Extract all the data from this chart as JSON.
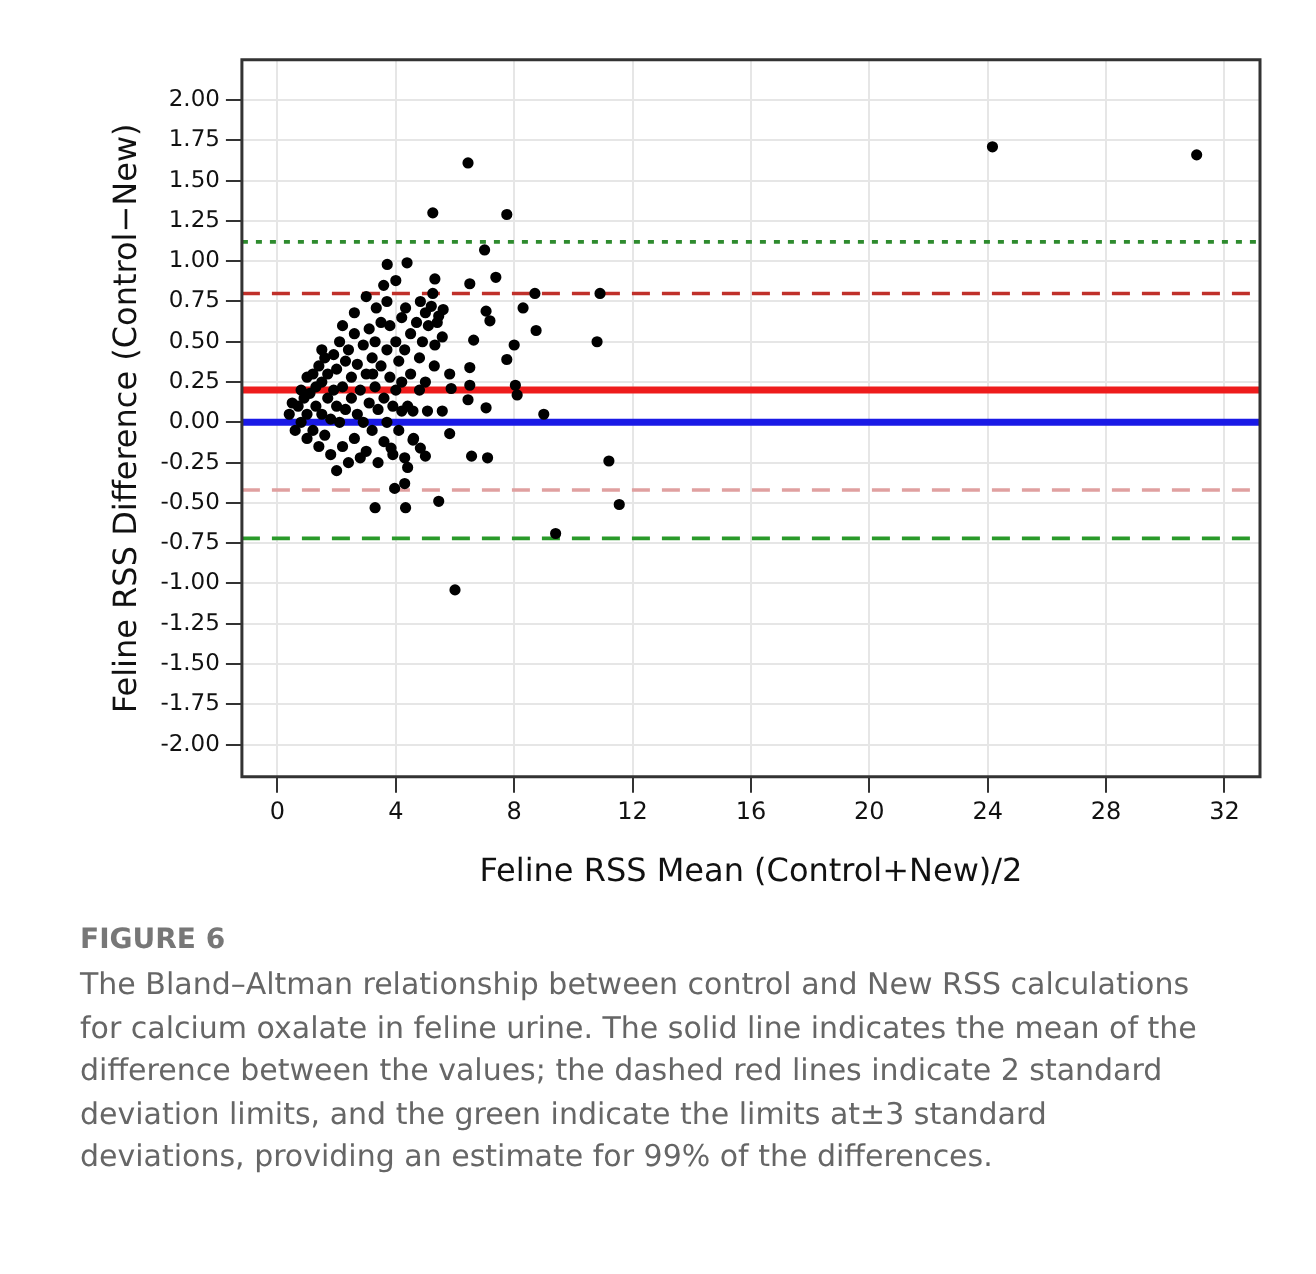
{
  "chart_data": {
    "type": "scatter",
    "xlabel": "Feline RSS Mean (Control+New)/2",
    "ylabel": "Feline RSS Difference (Control−New)",
    "annotations": [
      "FIGURE 6",
      "The Bland–Altman relationship between control and New RSS calculations for calcium oxalate in feline urine. The solid line indicates the mean of the difference between the values; the dashed red lines indicate 2 standard deviation limits, and the green indicate the limits at±3 standard deviations, providing an estimate for 99% of the differences."
    ],
    "xlim": [
      -1.2,
      33.2
    ],
    "xticks": [
      0,
      4,
      8,
      12,
      16,
      20,
      24,
      28,
      32
    ],
    "ylim": [
      -2.2,
      2.25
    ],
    "yticks": [
      {
        "value": 2,
        "label": "2.00"
      },
      {
        "value": 1.75,
        "label": "1.75"
      },
      {
        "value": 1.5,
        "label": "1.50"
      },
      {
        "value": 1.25,
        "label": "1.25"
      },
      {
        "value": 1,
        "label": "1.00"
      },
      {
        "value": 0.75,
        "label": "0.75"
      },
      {
        "value": 0.5,
        "label": "0.50"
      },
      {
        "value": 0.25,
        "label": "0.25"
      },
      {
        "value": 0,
        "label": "0.00"
      },
      {
        "value": -0.25,
        "label": "-0.25"
      },
      {
        "value": -0.5,
        "label": "-0.50"
      },
      {
        "value": -0.75,
        "label": "-0.75"
      },
      {
        "value": -1,
        "label": "-1.00"
      },
      {
        "value": -1.25,
        "label": "-1.25"
      },
      {
        "value": -1.5,
        "label": "-1.50"
      },
      {
        "value": -1.75,
        "label": "-1.75"
      },
      {
        "value": -2,
        "label": "-2.00"
      }
    ],
    "grid": true,
    "legend": false,
    "marker": "circle",
    "ref_lines": [
      {
        "axis": "y",
        "value": 1.12,
        "color": "#2e8b2e",
        "line_style": "dotted"
      },
      {
        "axis": "y",
        "value": 0.8,
        "color": "#c0302a",
        "line_style": "dashed"
      },
      {
        "axis": "y",
        "value": 0.2,
        "color": "#ee1c1c",
        "line_style": "solid"
      },
      {
        "axis": "y",
        "value": 0,
        "color": "#1a1ae6",
        "line_style": "solid"
      },
      {
        "axis": "y",
        "value": -0.42,
        "color": "#e0a0a0",
        "line_style": "dashed"
      },
      {
        "axis": "y",
        "value": -0.72,
        "color": "#2a9a2a",
        "line_style": "dashed"
      }
    ],
    "series": [
      {
        "color": "#000000",
        "x": [
          6.44,
          5.25,
          7.75,
          7.0,
          3.71,
          4.38,
          6.5,
          7.38,
          8.3,
          8.7,
          10.9,
          10.8,
          8.74,
          7.75,
          8.0,
          7.18,
          7.05,
          6.63,
          6.5,
          8.04,
          8.1,
          7.05,
          9.0,
          6.5,
          5.87,
          5.82,
          6.56,
          7.1,
          11.2,
          11.55,
          9.4,
          5.45,
          3.3,
          4.33,
          3.96,
          4.3,
          6.0,
          5.0,
          4.83,
          5.07,
          5.57,
          6.44,
          5.82,
          5.32,
          5.57,
          5.45,
          5.25,
          5.32,
          4.83,
          4.33,
          3.59,
          3.34,
          3.22,
          4.2,
          3.84,
          4.58,
          4.58,
          24.16,
          31.06,
          0.4,
          0.5,
          0.6,
          0.7,
          0.8,
          0.8,
          0.9,
          1.0,
          1.0,
          1.0,
          1.1,
          1.2,
          1.2,
          1.3,
          1.3,
          1.4,
          1.4,
          1.5,
          1.5,
          1.6,
          1.6,
          1.7,
          1.7,
          1.8,
          1.8,
          1.9,
          1.9,
          2.0,
          2.0,
          2.0,
          2.1,
          2.1,
          2.2,
          2.2,
          2.3,
          2.3,
          2.4,
          2.4,
          2.5,
          2.5,
          2.6,
          2.6,
          2.7,
          2.7,
          2.8,
          2.8,
          2.9,
          2.9,
          3.0,
          3.0,
          3.1,
          3.1,
          3.2,
          3.2,
          3.3,
          3.3,
          3.4,
          3.4,
          3.5,
          3.5,
          3.6,
          3.6,
          3.7,
          3.7,
          3.8,
          3.8,
          3.9,
          3.9,
          4.0,
          4.0,
          4.1,
          4.1,
          4.2,
          4.2,
          4.3,
          4.3,
          4.4,
          4.5,
          4.5,
          4.6,
          4.7,
          4.8,
          4.9,
          5.0,
          5.1,
          5.2,
          5.4,
          5.6,
          5.0,
          5.3,
          4.8,
          4.4,
          2.2,
          1.5,
          2.6,
          3.0,
          3.7,
          4.0
        ],
        "values": [
          1.61,
          1.3,
          1.29,
          1.07,
          0.98,
          0.99,
          0.86,
          0.9,
          0.71,
          0.8,
          0.8,
          0.5,
          0.57,
          0.39,
          0.48,
          0.63,
          0.69,
          0.51,
          0.34,
          0.23,
          0.17,
          0.09,
          0.05,
          0.23,
          0.21,
          -0.07,
          -0.21,
          -0.22,
          -0.24,
          -0.51,
          -0.69,
          -0.49,
          -0.53,
          -0.53,
          -0.41,
          -0.38,
          -1.04,
          -0.21,
          -0.16,
          0.07,
          0.07,
          0.14,
          0.3,
          0.48,
          0.53,
          0.66,
          0.8,
          0.89,
          0.75,
          0.71,
          0.85,
          0.71,
          0.3,
          0.07,
          -0.16,
          -0.11,
          0.07,
          1.71,
          1.66,
          0.05,
          0.12,
          -0.05,
          0.1,
          0.2,
          0.0,
          0.15,
          0.28,
          0.05,
          -0.1,
          0.18,
          0.3,
          -0.05,
          0.1,
          0.22,
          0.35,
          -0.15,
          0.05,
          0.25,
          0.4,
          -0.08,
          0.15,
          0.3,
          -0.2,
          0.02,
          0.2,
          0.42,
          0.1,
          -0.3,
          0.33,
          0.0,
          0.5,
          0.22,
          -0.15,
          0.38,
          0.08,
          -0.25,
          0.45,
          0.15,
          0.28,
          -0.1,
          0.55,
          0.05,
          0.36,
          -0.22,
          0.2,
          0.48,
          0.0,
          0.3,
          -0.18,
          0.12,
          0.58,
          0.4,
          -0.05,
          0.22,
          0.5,
          -0.25,
          0.08,
          0.35,
          0.62,
          0.15,
          -0.12,
          0.45,
          0.0,
          0.28,
          0.6,
          -0.2,
          0.1,
          0.5,
          0.2,
          -0.05,
          0.38,
          0.65,
          0.25,
          -0.22,
          0.45,
          0.1,
          0.55,
          0.3,
          -0.1,
          0.62,
          0.4,
          0.5,
          0.68,
          0.6,
          0.72,
          0.62,
          0.7,
          0.25,
          0.35,
          0.2,
          -0.28,
          0.6,
          0.45,
          0.68,
          0.78,
          0.75,
          0.88
        ]
      }
    ]
  }
}
